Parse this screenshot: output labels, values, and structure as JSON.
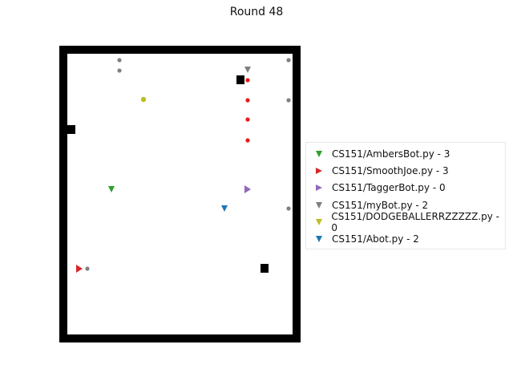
{
  "title": "Round 48",
  "arena": {
    "wall_color": "#000000",
    "floor_color": "#ffffff"
  },
  "obstacles": [
    {
      "id": "obstacle-1"
    },
    {
      "id": "obstacle-2"
    },
    {
      "id": "obstacle-3"
    }
  ],
  "bots": [
    {
      "name": "CS151/AmbersBot.py",
      "score": 3,
      "color": "#2ca02c",
      "marker": "triangle-down",
      "label": "CS151/AmbersBot.py - 3"
    },
    {
      "name": "CS151/SmoothJoe.py",
      "score": 3,
      "color": "#d62728",
      "marker": "triangle-right",
      "label": "CS151/SmoothJoe.py - 3"
    },
    {
      "name": "CS151/TaggerBot.py",
      "score": 0,
      "color": "#9467bd",
      "marker": "triangle-right",
      "label": "CS151/TaggerBot.py - 0"
    },
    {
      "name": "CS151/myBot.py",
      "score": 2,
      "color": "#7f7f7f",
      "marker": "triangle-down",
      "label": "CS151/myBot.py - 2"
    },
    {
      "name": "CS151/DODGEBALLERRZZZZZ.py",
      "score": 0,
      "color": "#bcbd22",
      "marker": "triangle-down",
      "label": "CS151/DODGEBALLERRZZZZZ.py - 0"
    },
    {
      "name": "CS151/Abot.py",
      "score": 2,
      "color": "#1f77b4",
      "marker": "triangle-down",
      "label": "CS151/Abot.py - 2"
    }
  ],
  "balls": {
    "gray": "#808080",
    "red": "#e41a1c",
    "yellow": "#bcbd22"
  }
}
